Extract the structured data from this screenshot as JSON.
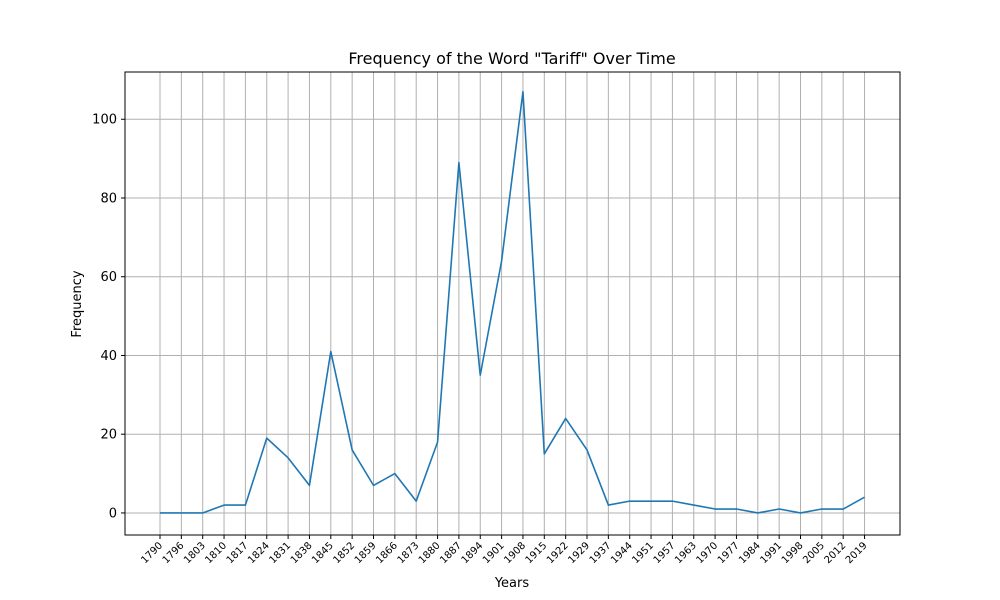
{
  "chart_data": {
    "type": "line",
    "title": "Frequency of the Word \"Tariff\" Over Time",
    "xlabel": "Years",
    "ylabel": "Frequency",
    "categories": [
      "1790",
      "1796",
      "1803",
      "1810",
      "1817",
      "1824",
      "1831",
      "1838",
      "1845",
      "1852",
      "1859",
      "1866",
      "1873",
      "1880",
      "1887",
      "1894",
      "1901",
      "1908",
      "1915",
      "1922",
      "1929",
      "1937",
      "1944",
      "1951",
      "1957",
      "1963",
      "1970",
      "1977",
      "1984",
      "1991",
      "1998",
      "2005",
      "2012",
      "2019"
    ],
    "series": [
      {
        "values": [
          0,
          0,
          0,
          2,
          2,
          19,
          14,
          7,
          41,
          16,
          7,
          10,
          3,
          18,
          89,
          35,
          64,
          107,
          15,
          24,
          16,
          2,
          3,
          3,
          3,
          2,
          1,
          1,
          0,
          1,
          0,
          1,
          1,
          4
        ]
      }
    ],
    "ylim": [
      -5.6,
      112
    ],
    "yticks": [
      0,
      20,
      40,
      60,
      80,
      100
    ],
    "grid": true,
    "colors": {
      "series": "#1f77b4"
    }
  }
}
